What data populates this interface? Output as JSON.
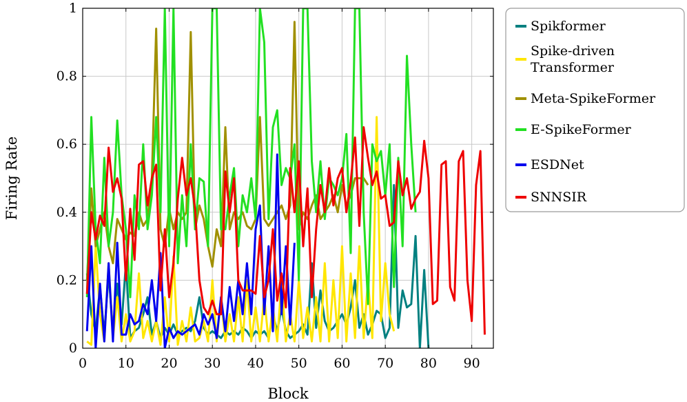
{
  "chart_data": {
    "type": "line",
    "xlabel": "Block",
    "ylabel": "Firing Rate",
    "xlim": [
      0,
      95
    ],
    "ylim": [
      0,
      1
    ],
    "xticks": [
      0,
      10,
      20,
      30,
      40,
      50,
      60,
      70,
      80,
      90
    ],
    "yticks": [
      0,
      0.2,
      0.4,
      0.6,
      0.8,
      1
    ],
    "ytick_labels": [
      "0",
      "0.2",
      "0.4",
      "0.6",
      "0.8",
      "1"
    ],
    "grid": true,
    "legend_position": "outside-right",
    "series": [
      {
        "name": "Spikformer",
        "color": "#008080",
        "x": [
          1,
          2,
          3,
          4,
          5,
          6,
          7,
          8,
          9,
          10,
          11,
          12,
          13,
          14,
          15,
          16,
          17,
          18,
          19,
          20,
          21,
          22,
          23,
          24,
          25,
          26,
          27,
          28,
          29,
          30,
          31,
          32,
          33,
          34,
          35,
          36,
          37,
          38,
          39,
          40,
          41,
          42,
          43,
          44,
          45,
          46,
          47,
          48,
          49,
          50,
          51,
          52,
          53,
          54,
          55,
          56,
          57,
          58,
          59,
          60,
          61,
          62,
          63,
          64,
          65,
          66,
          67,
          68,
          69,
          70,
          71,
          72,
          73,
          74,
          75,
          76,
          77,
          78,
          79,
          80
        ],
        "values": [
          0.22,
          0.1,
          0.05,
          0.18,
          0.04,
          0.22,
          0.05,
          0.19,
          0.07,
          0.25,
          0.03,
          0.05,
          0.06,
          0.1,
          0.15,
          0.04,
          0.08,
          0.03,
          0.06,
          0.04,
          0.07,
          0.04,
          0.05,
          0.06,
          0.05,
          0.08,
          0.15,
          0.06,
          0.04,
          0.05,
          0.04,
          0.03,
          0.05,
          0.04,
          0.05,
          0.04,
          0.06,
          0.05,
          0.03,
          0.05,
          0.04,
          0.05,
          0.03,
          0.1,
          0.05,
          0.12,
          0.05,
          0.03,
          0.04,
          0.05,
          0.07,
          0.04,
          0.25,
          0.06,
          0.17,
          0.08,
          0.05,
          0.06,
          0.08,
          0.1,
          0.07,
          0.12,
          0.2,
          0.06,
          0.1,
          0.04,
          0.07,
          0.11,
          0.1,
          0.03,
          0.06,
          0.48,
          0.06,
          0.17,
          0.12,
          0.13,
          0.33,
          0.0,
          0.23,
          0.0
        ]
      },
      {
        "name": "Spike-driven Transformer",
        "color": "#ffe600",
        "x": [
          1,
          2,
          3,
          4,
          5,
          6,
          7,
          8,
          9,
          10,
          11,
          12,
          13,
          14,
          15,
          16,
          17,
          18,
          19,
          20,
          21,
          22,
          23,
          24,
          25,
          26,
          27,
          28,
          29,
          30,
          31,
          32,
          33,
          34,
          35,
          36,
          37,
          38,
          39,
          40,
          41,
          42,
          43,
          44,
          45,
          46,
          47,
          48,
          49,
          50,
          51,
          52,
          53,
          54,
          55,
          56,
          57,
          58,
          59,
          60,
          61,
          62,
          63,
          64,
          65,
          66,
          67,
          68,
          69,
          70,
          71,
          72
        ],
        "values": [
          0.02,
          0.01,
          0.3,
          0.1,
          0.02,
          0.25,
          0.03,
          0.15,
          0.02,
          0.1,
          0.02,
          0.05,
          0.22,
          0.03,
          0.08,
          0.02,
          0.08,
          0.01,
          0.15,
          0.02,
          0.27,
          0.01,
          0.08,
          0.02,
          0.12,
          0.02,
          0.03,
          0.08,
          0.02,
          0.2,
          0.02,
          0.15,
          0.02,
          0.1,
          0.02,
          0.15,
          0.02,
          0.2,
          0.02,
          0.12,
          0.02,
          0.15,
          0.02,
          0.12,
          0.02,
          0.2,
          0.02,
          0.1,
          0.02,
          0.2,
          0.03,
          0.12,
          0.02,
          0.15,
          0.02,
          0.25,
          0.02,
          0.2,
          0.03,
          0.3,
          0.02,
          0.22,
          0.03,
          0.3,
          0.03,
          0.2,
          0.03,
          0.68,
          0.08,
          0.25,
          0.1,
          0.05
        ]
      },
      {
        "name": "Meta-SpikeFormer",
        "color": "#a09000",
        "x": [
          1,
          2,
          3,
          4,
          5,
          6,
          7,
          8,
          9,
          10,
          11,
          12,
          13,
          14,
          15,
          16,
          17,
          18,
          19,
          20,
          21,
          22,
          23,
          24,
          25,
          26,
          27,
          28,
          29,
          30,
          31,
          32,
          33,
          34,
          35,
          36,
          37,
          38,
          39,
          40,
          41,
          42,
          43,
          44,
          45,
          46,
          47,
          48,
          49,
          50,
          51,
          52,
          53,
          54,
          55,
          56,
          57,
          58,
          59,
          60,
          61,
          62,
          63,
          64,
          65,
          66
        ],
        "values": [
          0.2,
          0.47,
          0.3,
          0.35,
          0.4,
          0.3,
          0.25,
          0.38,
          0.35,
          0.32,
          0.34,
          0.33,
          0.4,
          0.36,
          0.38,
          0.5,
          0.94,
          0.35,
          0.3,
          0.41,
          0.35,
          0.4,
          0.38,
          0.4,
          0.93,
          0.35,
          0.42,
          0.38,
          0.3,
          0.24,
          0.35,
          0.3,
          0.65,
          0.35,
          0.4,
          0.38,
          0.4,
          0.36,
          0.35,
          0.38,
          0.68,
          0.38,
          0.36,
          0.38,
          0.4,
          0.42,
          0.38,
          0.42,
          0.96,
          0.35,
          0.4,
          0.38,
          0.42,
          0.45,
          0.38,
          0.4,
          0.42,
          0.45,
          0.4,
          0.48,
          0.42,
          0.45,
          0.5,
          0.5,
          0.5,
          0.48
        ]
      },
      {
        "name": "E-SpikeFormer",
        "color": "#22e022",
        "x": [
          1,
          2,
          3,
          4,
          5,
          6,
          7,
          8,
          9,
          10,
          11,
          12,
          13,
          14,
          15,
          16,
          17,
          18,
          19,
          20,
          21,
          22,
          23,
          24,
          25,
          26,
          27,
          28,
          29,
          30,
          31,
          32,
          33,
          34,
          35,
          36,
          37,
          38,
          39,
          40,
          41,
          42,
          43,
          44,
          45,
          46,
          47,
          48,
          49,
          50,
          51,
          52,
          53,
          54,
          55,
          56,
          57,
          58,
          59,
          60,
          61,
          62,
          63,
          64,
          65,
          66,
          67,
          68,
          69,
          70,
          71,
          72,
          73,
          74,
          75,
          76,
          77
        ],
        "values": [
          0.15,
          0.68,
          0.35,
          0.25,
          0.56,
          0.3,
          0.4,
          0.67,
          0.45,
          0.35,
          0.15,
          0.45,
          0.35,
          0.6,
          0.35,
          0.45,
          0.68,
          0.4,
          1.0,
          0.3,
          1.0,
          0.25,
          0.45,
          0.3,
          0.6,
          0.35,
          0.5,
          0.49,
          0.3,
          1.0,
          1.0,
          0.35,
          0.35,
          0.45,
          0.53,
          0.3,
          0.45,
          0.4,
          0.5,
          0.38,
          1.0,
          0.9,
          0.38,
          0.65,
          0.7,
          0.48,
          0.53,
          0.5,
          0.6,
          0.2,
          1.0,
          1.0,
          0.55,
          0.4,
          0.55,
          0.38,
          0.5,
          0.48,
          0.45,
          0.5,
          0.63,
          0.28,
          1.0,
          1.0,
          0.4,
          0.13,
          0.6,
          0.55,
          0.58,
          0.45,
          0.6,
          0.18,
          0.56,
          0.3,
          0.86,
          0.6,
          0.4
        ]
      },
      {
        "name": "ESDNet",
        "color": "#0000ee",
        "x": [
          1,
          2,
          3,
          4,
          5,
          6,
          7,
          8,
          9,
          10,
          11,
          12,
          13,
          14,
          15,
          16,
          17,
          18,
          19,
          20,
          21,
          22,
          23,
          24,
          25,
          26,
          27,
          28,
          29,
          30,
          31,
          32,
          33,
          34,
          35,
          36,
          37,
          38,
          39,
          40,
          41,
          42,
          43,
          44,
          45,
          46,
          47,
          48,
          49
        ],
        "values": [
          0.05,
          0.3,
          0.0,
          0.19,
          0.02,
          0.25,
          0.02,
          0.31,
          0.04,
          0.04,
          0.1,
          0.07,
          0.08,
          0.13,
          0.1,
          0.2,
          0.08,
          0.28,
          0.0,
          0.06,
          0.03,
          0.05,
          0.04,
          0.05,
          0.06,
          0.07,
          0.04,
          0.1,
          0.07,
          0.1,
          0.03,
          0.15,
          0.05,
          0.18,
          0.08,
          0.2,
          0.1,
          0.25,
          0.1,
          0.35,
          0.42,
          0.1,
          0.3,
          0.05,
          0.57,
          0.1,
          0.3,
          0.07,
          0.31
        ]
      },
      {
        "name": "SNNSIR",
        "color": "#ee0000",
        "x": [
          1,
          2,
          3,
          4,
          5,
          6,
          7,
          8,
          9,
          10,
          11,
          12,
          13,
          14,
          15,
          16,
          17,
          18,
          19,
          20,
          21,
          22,
          23,
          24,
          25,
          26,
          27,
          28,
          29,
          30,
          31,
          32,
          33,
          34,
          35,
          36,
          37,
          38,
          39,
          40,
          41,
          42,
          43,
          44,
          45,
          46,
          47,
          48,
          49,
          50,
          51,
          52,
          53,
          54,
          55,
          56,
          57,
          58,
          59,
          60,
          61,
          62,
          63,
          64,
          65,
          66,
          67,
          68,
          69,
          70,
          71,
          72,
          73,
          74,
          75,
          76,
          77,
          78,
          79,
          80,
          81,
          82,
          83,
          84,
          85,
          86,
          87,
          88,
          89,
          90,
          91,
          92,
          93
        ],
        "values": [
          0.16,
          0.4,
          0.32,
          0.39,
          0.36,
          0.59,
          0.46,
          0.5,
          0.44,
          0.2,
          0.41,
          0.26,
          0.54,
          0.55,
          0.42,
          0.5,
          0.54,
          0.17,
          0.35,
          0.15,
          0.25,
          0.44,
          0.56,
          0.45,
          0.5,
          0.41,
          0.2,
          0.12,
          0.1,
          0.14,
          0.1,
          0.1,
          0.52,
          0.4,
          0.5,
          0.2,
          0.17,
          0.17,
          0.17,
          0.16,
          0.33,
          0.15,
          0.2,
          0.35,
          0.14,
          0.22,
          0.12,
          0.53,
          0.4,
          0.55,
          0.3,
          0.47,
          0.15,
          0.35,
          0.48,
          0.4,
          0.53,
          0.42,
          0.5,
          0.53,
          0.4,
          0.49,
          0.62,
          0.36,
          0.65,
          0.56,
          0.48,
          0.52,
          0.44,
          0.45,
          0.36,
          0.37,
          0.55,
          0.45,
          0.5,
          0.41,
          0.44,
          0.46,
          0.61,
          0.5,
          0.13,
          0.14,
          0.54,
          0.55,
          0.18,
          0.14,
          0.55,
          0.58,
          0.2,
          0.08,
          0.48,
          0.58,
          0.04
        ]
      }
    ]
  }
}
